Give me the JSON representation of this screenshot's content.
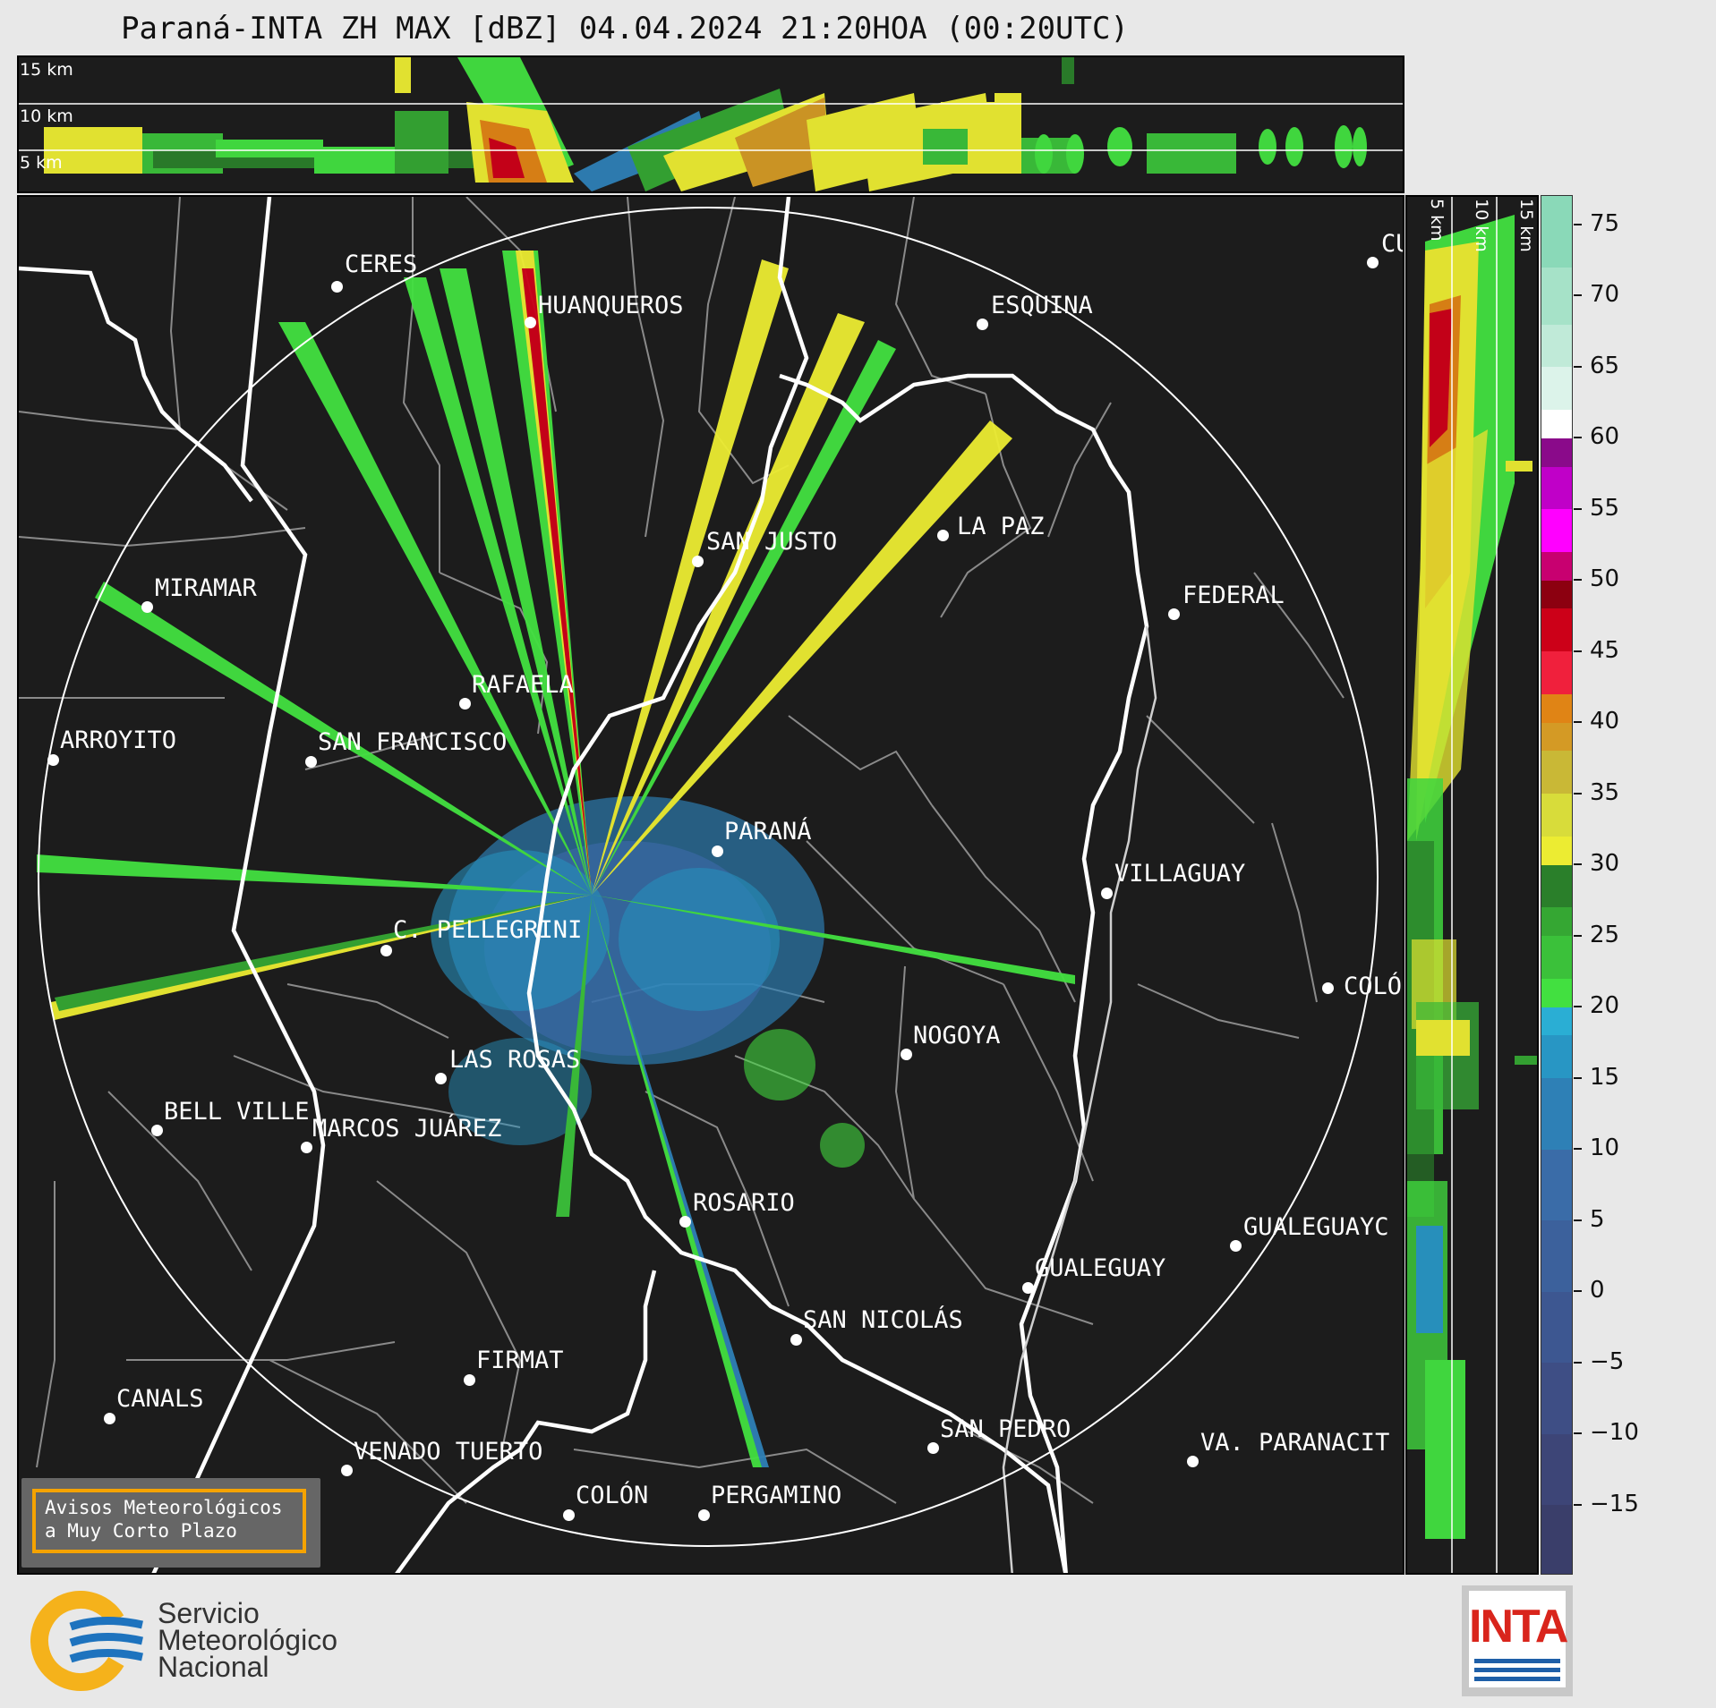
{
  "title": "Paraná-INTA ZH MAX [dBZ] 04.04.2024 21:20HOA (00:20UTC)",
  "top_profile": {
    "altitude_labels": [
      "15 km",
      "10 km",
      "5 km"
    ]
  },
  "side_profile": {
    "altitude_labels": [
      "5 km",
      "10 km",
      "15 km"
    ]
  },
  "colorbar": {
    "unit": "dBZ",
    "ticks": [
      "75",
      "70",
      "65",
      "60",
      "55",
      "50",
      "45",
      "40",
      "35",
      "30",
      "25",
      "20",
      "15",
      "10",
      "5",
      "0",
      "−5",
      "−10",
      "−15"
    ],
    "range": [
      -20,
      77
    ],
    "levels": [
      {
        "from": -20,
        "to": -15,
        "color": "#3a3e6a"
      },
      {
        "from": -15,
        "to": -10,
        "color": "#3d4577"
      },
      {
        "from": -10,
        "to": -5,
        "color": "#3e4e85"
      },
      {
        "from": -5,
        "to": 0,
        "color": "#3d5791"
      },
      {
        "from": 0,
        "to": 5,
        "color": "#3c619c"
      },
      {
        "from": 5,
        "to": 10,
        "color": "#3a6ca8"
      },
      {
        "from": 10,
        "to": 15,
        "color": "#2e80b6"
      },
      {
        "from": 15,
        "to": 18,
        "color": "#2896c4"
      },
      {
        "from": 18,
        "to": 20,
        "color": "#2aaed4"
      },
      {
        "from": 20,
        "to": 22,
        "color": "#42e040"
      },
      {
        "from": 22,
        "to": 25,
        "color": "#3bc13a"
      },
      {
        "from": 25,
        "to": 27,
        "color": "#35a733"
      },
      {
        "from": 27,
        "to": 30,
        "color": "#2a7f2a"
      },
      {
        "from": 30,
        "to": 32,
        "color": "#ecec32"
      },
      {
        "from": 32,
        "to": 35,
        "color": "#d8dc3a"
      },
      {
        "from": 35,
        "to": 38,
        "color": "#c9b836"
      },
      {
        "from": 38,
        "to": 40,
        "color": "#d49a25"
      },
      {
        "from": 40,
        "to": 42,
        "color": "#e08415"
      },
      {
        "from": 42,
        "to": 45,
        "color": "#f0203c"
      },
      {
        "from": 45,
        "to": 48,
        "color": "#cc0018"
      },
      {
        "from": 48,
        "to": 50,
        "color": "#8c0010"
      },
      {
        "from": 50,
        "to": 52,
        "color": "#c80070"
      },
      {
        "from": 52,
        "to": 55,
        "color": "#ff00ff"
      },
      {
        "from": 55,
        "to": 58,
        "color": "#c000c8"
      },
      {
        "from": 58,
        "to": 60,
        "color": "#8a0a8a"
      },
      {
        "from": 60,
        "to": 62,
        "color": "#ffffff"
      },
      {
        "from": 62,
        "to": 65,
        "color": "#dcf3ea"
      },
      {
        "from": 65,
        "to": 68,
        "color": "#c0ead8"
      },
      {
        "from": 68,
        "to": 72,
        "color": "#a6e2c8"
      },
      {
        "from": 72,
        "to": 77,
        "color": "#8ad9b8"
      }
    ]
  },
  "cities": [
    {
      "name": "CERES"
    },
    {
      "name": "HUANQUEROS"
    },
    {
      "name": "ESQUINA"
    },
    {
      "name": "CU"
    },
    {
      "name": "LA PAZ"
    },
    {
      "name": "SAN JUSTO"
    },
    {
      "name": "MIRAMAR"
    },
    {
      "name": "FEDERAL"
    },
    {
      "name": "RAFAELA"
    },
    {
      "name": "ARROYITO"
    },
    {
      "name": "SAN FRANCISCO"
    },
    {
      "name": "PARANÁ"
    },
    {
      "name": "VILLAGUAY"
    },
    {
      "name": "C. PELLEGRINI"
    },
    {
      "name": "COLÓ"
    },
    {
      "name": "NOGOYA"
    },
    {
      "name": "LAS ROSAS"
    },
    {
      "name": "BELL VILLE"
    },
    {
      "name": "MARCOS JUÁREZ"
    },
    {
      "name": "ROSARIO"
    },
    {
      "name": "GUALEGUAYC"
    },
    {
      "name": "GUALEGUAY"
    },
    {
      "name": "SAN NICOLÁS"
    },
    {
      "name": "FIRMAT"
    },
    {
      "name": "CANALS"
    },
    {
      "name": "SAN PEDRO"
    },
    {
      "name": "VENADO TUERTO"
    },
    {
      "name": "VA. PARANACIT"
    },
    {
      "name": "COLÓN"
    },
    {
      "name": "PERGAMINO"
    }
  ],
  "notice": {
    "line1": "Avisos Meteorológicos",
    "line2": "a Muy Corto Plazo"
  },
  "smn": {
    "line1": "Servicio",
    "line2": "Meteorológico",
    "line3": "Nacional",
    "accent": "#f5b21b",
    "wave": "#1e73be"
  },
  "inta": {
    "word": "INTA",
    "color": "#d9251c",
    "stripe": "#1e5fa8"
  }
}
